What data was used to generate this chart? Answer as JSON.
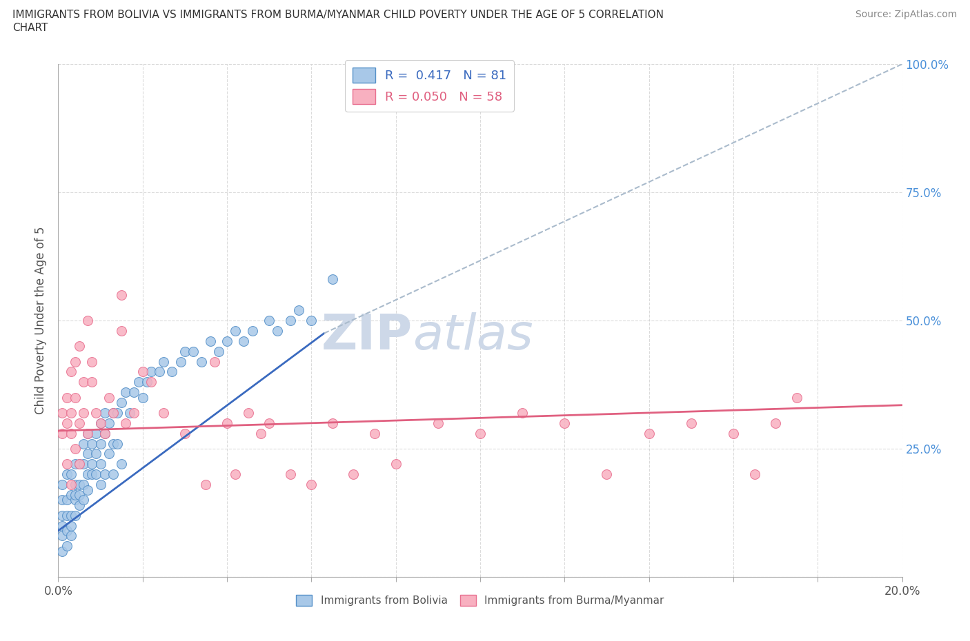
{
  "title_line1": "IMMIGRANTS FROM BOLIVIA VS IMMIGRANTS FROM BURMA/MYANMAR CHILD POVERTY UNDER THE AGE OF 5 CORRELATION",
  "title_line2": "CHART",
  "source": "Source: ZipAtlas.com",
  "ylabel": "Child Poverty Under the Age of 5",
  "xlim": [
    0.0,
    0.2
  ],
  "ylim": [
    0.0,
    1.0
  ],
  "xticks": [
    0.0,
    0.02,
    0.04,
    0.06,
    0.08,
    0.1,
    0.12,
    0.14,
    0.16,
    0.18,
    0.2
  ],
  "yticks": [
    0.0,
    0.25,
    0.5,
    0.75,
    1.0
  ],
  "ytick_labels_right": [
    "",
    "25.0%",
    "50.0%",
    "75.0%",
    "100.0%"
  ],
  "bolivia_R": 0.417,
  "bolivia_N": 81,
  "myanmar_R": 0.05,
  "myanmar_N": 58,
  "bolivia_scatter_color": "#a8c8e8",
  "bolivia_edge_color": "#5590c8",
  "myanmar_scatter_color": "#f8b0c0",
  "myanmar_edge_color": "#e87090",
  "bolivia_line_color": "#3a6abf",
  "myanmar_line_color": "#e06080",
  "dashed_color": "#aabbcc",
  "bolivia_line_x0": 0.0,
  "bolivia_line_y0": 0.09,
  "bolivia_line_x1": 0.063,
  "bolivia_line_y1": 0.475,
  "myanmar_line_x0": 0.0,
  "myanmar_line_y0": 0.285,
  "myanmar_line_x1": 0.2,
  "myanmar_line_y1": 0.335,
  "dashed_line_x0": 0.063,
  "dashed_line_y0": 0.475,
  "dashed_line_x1": 0.2,
  "dashed_line_y1": 1.0,
  "background_color": "#ffffff",
  "grid_color": "#cccccc",
  "watermark_text": "ZIPatlas",
  "watermark_color": "#cdd8e8",
  "bolivia_scatter_x": [
    0.001,
    0.001,
    0.001,
    0.001,
    0.001,
    0.001,
    0.002,
    0.002,
    0.002,
    0.002,
    0.002,
    0.003,
    0.003,
    0.003,
    0.003,
    0.003,
    0.004,
    0.004,
    0.004,
    0.004,
    0.004,
    0.005,
    0.005,
    0.005,
    0.005,
    0.006,
    0.006,
    0.006,
    0.006,
    0.007,
    0.007,
    0.007,
    0.007,
    0.008,
    0.008,
    0.008,
    0.009,
    0.009,
    0.009,
    0.01,
    0.01,
    0.01,
    0.01,
    0.011,
    0.011,
    0.011,
    0.012,
    0.012,
    0.013,
    0.013,
    0.013,
    0.014,
    0.014,
    0.015,
    0.015,
    0.016,
    0.017,
    0.018,
    0.019,
    0.02,
    0.021,
    0.022,
    0.024,
    0.025,
    0.027,
    0.029,
    0.03,
    0.032,
    0.034,
    0.036,
    0.038,
    0.04,
    0.042,
    0.044,
    0.046,
    0.05,
    0.052,
    0.055,
    0.057,
    0.06,
    0.065
  ],
  "bolivia_scatter_y": [
    0.05,
    0.08,
    0.1,
    0.12,
    0.15,
    0.18,
    0.06,
    0.09,
    0.12,
    0.15,
    0.2,
    0.08,
    0.12,
    0.16,
    0.2,
    0.1,
    0.12,
    0.15,
    0.18,
    0.22,
    0.16,
    0.14,
    0.18,
    0.22,
    0.16,
    0.18,
    0.22,
    0.26,
    0.15,
    0.2,
    0.24,
    0.28,
    0.17,
    0.22,
    0.26,
    0.2,
    0.24,
    0.28,
    0.2,
    0.26,
    0.3,
    0.22,
    0.18,
    0.28,
    0.32,
    0.2,
    0.3,
    0.24,
    0.32,
    0.26,
    0.2,
    0.32,
    0.26,
    0.34,
    0.22,
    0.36,
    0.32,
    0.36,
    0.38,
    0.35,
    0.38,
    0.4,
    0.4,
    0.42,
    0.4,
    0.42,
    0.44,
    0.44,
    0.42,
    0.46,
    0.44,
    0.46,
    0.48,
    0.46,
    0.48,
    0.5,
    0.48,
    0.5,
    0.52,
    0.5,
    0.58
  ],
  "myanmar_scatter_x": [
    0.001,
    0.001,
    0.002,
    0.002,
    0.003,
    0.003,
    0.003,
    0.004,
    0.004,
    0.005,
    0.005,
    0.006,
    0.006,
    0.007,
    0.007,
    0.008,
    0.008,
    0.009,
    0.01,
    0.011,
    0.012,
    0.013,
    0.015,
    0.015,
    0.016,
    0.018,
    0.02,
    0.022,
    0.025,
    0.03,
    0.035,
    0.037,
    0.04,
    0.042,
    0.045,
    0.048,
    0.05,
    0.055,
    0.06,
    0.065,
    0.07,
    0.075,
    0.08,
    0.09,
    0.1,
    0.11,
    0.12,
    0.13,
    0.14,
    0.15,
    0.16,
    0.165,
    0.17,
    0.175,
    0.002,
    0.003,
    0.004,
    0.005
  ],
  "myanmar_scatter_y": [
    0.28,
    0.32,
    0.3,
    0.35,
    0.28,
    0.32,
    0.4,
    0.35,
    0.42,
    0.3,
    0.45,
    0.32,
    0.38,
    0.5,
    0.28,
    0.38,
    0.42,
    0.32,
    0.3,
    0.28,
    0.35,
    0.32,
    0.55,
    0.48,
    0.3,
    0.32,
    0.4,
    0.38,
    0.32,
    0.28,
    0.18,
    0.42,
    0.3,
    0.2,
    0.32,
    0.28,
    0.3,
    0.2,
    0.18,
    0.3,
    0.2,
    0.28,
    0.22,
    0.3,
    0.28,
    0.32,
    0.3,
    0.2,
    0.28,
    0.3,
    0.28,
    0.2,
    0.3,
    0.35,
    0.22,
    0.18,
    0.25,
    0.22
  ]
}
